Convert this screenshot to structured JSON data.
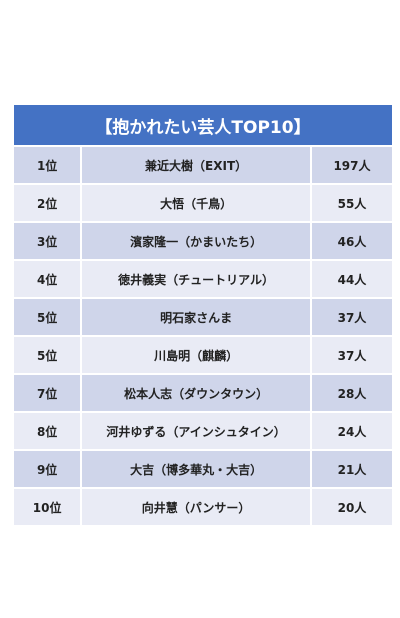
{
  "title": "【抱かれたい芸人TOP10】",
  "rows": [
    {
      "rank": "1位",
      "name": "兼近大樹（EXIT）",
      "count": "197人"
    },
    {
      "rank": "2位",
      "name": "大悟（千鳥）",
      "count": "55人"
    },
    {
      "rank": "3位",
      "name": "濱家隆一（かまいたち）",
      "count": "46人"
    },
    {
      "rank": "4位",
      "name": "徳井義実（チュートリアル）",
      "count": "44人"
    },
    {
      "rank": "5位",
      "name": "明石家さんま",
      "count": "37人"
    },
    {
      "rank": "5位",
      "name": "川島明（麒麟）",
      "count": "37人"
    },
    {
      "rank": "7位",
      "name": "松本人志（ダウンタウン）",
      "count": "28人"
    },
    {
      "rank": "8位",
      "name": "河井ゆずる（アインシュタイン）",
      "count": "24人"
    },
    {
      "rank": "9位",
      "name": "大吉（博多華丸・大吉）",
      "count": "21人"
    },
    {
      "rank": "10位",
      "name": "向井慧（パンサー）",
      "count": "20人"
    }
  ],
  "colors": {
    "header": "#4472c4",
    "row_even": "#cfd5ea",
    "row_odd": "#e9ebf5"
  }
}
